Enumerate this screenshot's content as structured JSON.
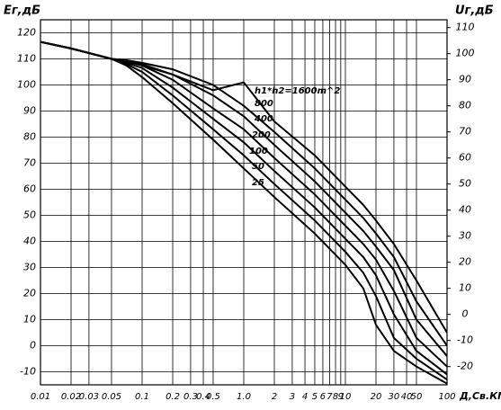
{
  "chart_data": {
    "type": "line",
    "y_label": "Eг,дБ",
    "y2_label": "Uг,дБ",
    "x_label": "Д,Св.КМ",
    "log_x": true,
    "grid": true,
    "xlim": [
      0.01,
      100
    ],
    "ylim": [
      -15,
      125
    ],
    "y2lim": [
      -27,
      113
    ],
    "xticks": [
      0.01,
      0.02,
      0.03,
      0.05,
      0.1,
      0.2,
      0.3,
      0.4,
      0.5,
      {
        "value": 1,
        "label": "1.0"
      },
      2,
      3,
      4,
      5,
      6,
      7,
      8,
      9,
      10,
      20,
      30,
      40,
      50,
      100
    ],
    "yticks": [
      -10,
      0,
      10,
      20,
      30,
      40,
      50,
      60,
      70,
      80,
      90,
      100,
      110,
      120
    ],
    "y2ticks": [
      -20,
      -10,
      0,
      10,
      20,
      30,
      40,
      50,
      60,
      70,
      80,
      90,
      100,
      110
    ],
    "x": [
      0.01,
      0.02,
      0.05,
      0.07,
      0.1,
      0.2,
      0.5,
      1,
      2,
      5,
      10,
      15,
      20,
      30,
      50,
      100
    ],
    "series": [
      {
        "name": "h1*h2=1600m^2",
        "color": "#000000",
        "values": [
          116.5,
          114,
          110,
          109,
          107.5,
          104,
          98,
          101,
          86,
          73,
          61,
          54,
          48,
          39,
          25,
          5
        ]
      },
      {
        "name": "800",
        "color": "#000000",
        "values": [
          116.5,
          114,
          110,
          109.5,
          108.5,
          106,
          100,
          92,
          82,
          68,
          56,
          49,
          43,
          34,
          17,
          0
        ]
      },
      {
        "name": "400",
        "color": "#000000",
        "values": [
          116.5,
          114,
          110,
          109.5,
          108,
          104,
          96,
          88,
          77,
          63,
          51,
          44,
          38,
          29,
          10,
          -4
        ]
      },
      {
        "name": "200",
        "color": "#000000",
        "values": [
          116.5,
          114,
          110,
          109,
          107.5,
          102,
          91,
          83,
          72,
          58,
          46,
          39,
          33,
          21,
          3,
          -8
        ]
      },
      {
        "name": "100",
        "color": "#000000",
        "values": [
          116.5,
          114,
          110,
          108.5,
          106.5,
          99,
          87,
          78,
          67,
          53,
          41,
          34,
          27,
          12,
          -2,
          -11
        ]
      },
      {
        "name": "50",
        "color": "#000000",
        "values": [
          116.5,
          114,
          110,
          108,
          105,
          96,
          83,
          73,
          62,
          48,
          36,
          28,
          19,
          3,
          -5,
          -13
        ]
      },
      {
        "name": "25",
        "color": "#000000",
        "values": [
          116.5,
          114,
          110,
          107.5,
          103,
          93,
          79,
          68,
          57,
          43,
          31,
          22,
          8,
          -2,
          -8,
          -14.5
        ]
      }
    ]
  }
}
